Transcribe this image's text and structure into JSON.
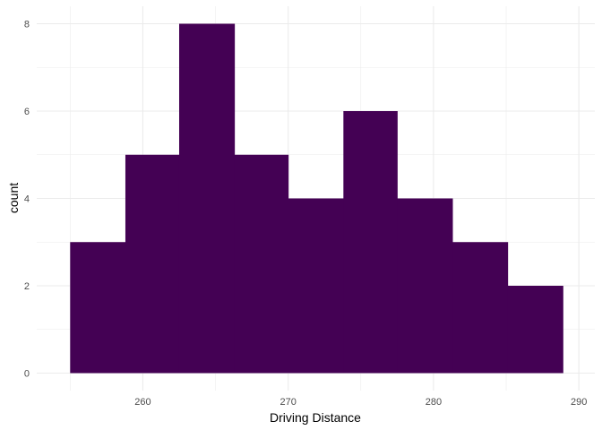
{
  "chart_data": {
    "type": "bar",
    "subtype": "histogram",
    "title": "",
    "xlabel": "Driving Distance",
    "ylabel": "count",
    "bins": [
      {
        "x0": 255.0,
        "x1": 258.8,
        "count": 3
      },
      {
        "x0": 258.8,
        "x1": 262.5,
        "count": 5
      },
      {
        "x0": 262.5,
        "x1": 266.3,
        "count": 8
      },
      {
        "x0": 266.3,
        "x1": 270.0,
        "count": 5
      },
      {
        "x0": 270.0,
        "x1": 273.8,
        "count": 4
      },
      {
        "x0": 273.8,
        "x1": 277.5,
        "count": 6
      },
      {
        "x0": 277.5,
        "x1": 281.3,
        "count": 4
      },
      {
        "x0": 281.3,
        "x1": 285.1,
        "count": 3
      },
      {
        "x0": 285.1,
        "x1": 288.9,
        "count": 2
      }
    ],
    "xlim": [
      252.7,
      291.1
    ],
    "ylim": [
      -0.4,
      8.4
    ],
    "x_ticks": [
      260,
      270,
      280,
      290
    ],
    "x_minor_ticks": [
      255,
      265,
      275,
      285
    ],
    "y_ticks": [
      0,
      2,
      4,
      6,
      8
    ],
    "y_minor_ticks": [
      1,
      3,
      5,
      7
    ],
    "grid": true,
    "legend": "none",
    "fill_color": "#440154",
    "grid_color": "#ebebeb"
  }
}
